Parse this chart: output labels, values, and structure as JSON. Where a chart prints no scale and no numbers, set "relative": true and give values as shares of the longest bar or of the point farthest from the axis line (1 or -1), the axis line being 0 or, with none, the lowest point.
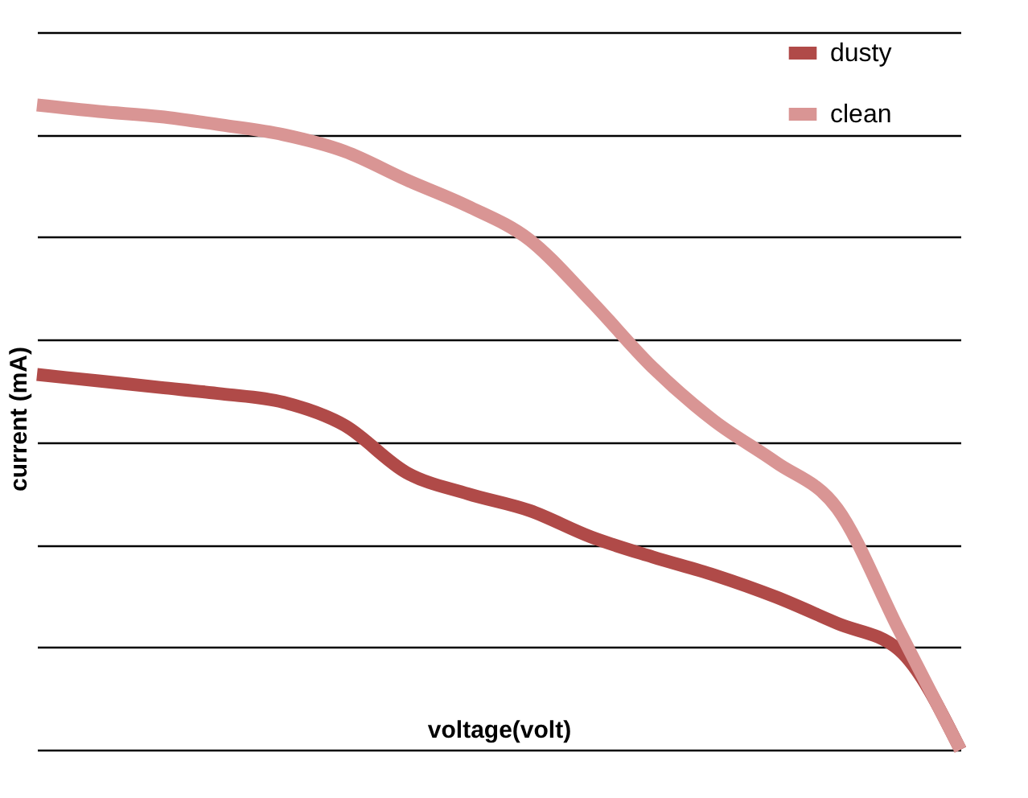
{
  "chart_data": {
    "type": "line",
    "relative": true,
    "xlabel": "voltage(volt)",
    "ylabel": "current (mA)",
    "grid": "y",
    "legend": "right",
    "marker": "none",
    "line_style": "solid",
    "categories": [
      null,
      null,
      null,
      null,
      null,
      null,
      null,
      null,
      null,
      null,
      null,
      null,
      null,
      null,
      null,
      null
    ],
    "series": [
      {
        "name": "dusty",
        "color": "#b04a48",
        "values": [
          0.582,
          0.572,
          0.562,
          0.552,
          0.539,
          0.503,
          0.43,
          0.397,
          0.371,
          0.33,
          0.299,
          0.271,
          0.237,
          0.196,
          0.155,
          0
        ]
      },
      {
        "name": "clean",
        "color": "#d99594",
        "values": [
          1,
          0.99,
          0.982,
          0.969,
          0.954,
          0.928,
          0.884,
          0.843,
          0.791,
          0.696,
          0.593,
          0.51,
          0.446,
          0.374,
          0.186,
          0
        ]
      }
    ]
  }
}
